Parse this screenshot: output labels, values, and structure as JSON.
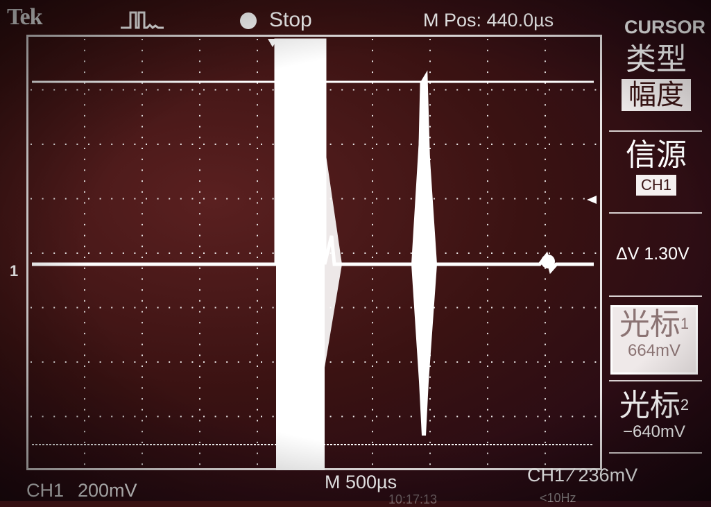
{
  "header": {
    "brand": "Tek",
    "trigger_icon": "trigger-pulse-icon",
    "run_state": "Stop",
    "horizontal_position": "M Pos: 440.0µs"
  },
  "channel": {
    "marker": "1"
  },
  "menu": {
    "title": "CURSOR",
    "type_label": "类型",
    "type_value": "幅度",
    "source_label": "信源",
    "source_value": "CH1",
    "delta_v": "ΔV 1.30V",
    "cursor1_label": "光标",
    "cursor1_index": "1",
    "cursor1_value": "664mV",
    "cursor2_label": "光标",
    "cursor2_index": "2",
    "cursor2_value": "−640mV"
  },
  "footer": {
    "channel": "CH1",
    "volts_per_div": "200mV",
    "time_per_div": "M 500µs",
    "trigger": "CH1 ∕ 236mV",
    "date_partial": "10:17:13",
    "freq_partial": "<10Hz"
  },
  "colors": {
    "trace": "#ffffff",
    "background": "#3a1212",
    "graticule": "#e8e4e4"
  }
}
